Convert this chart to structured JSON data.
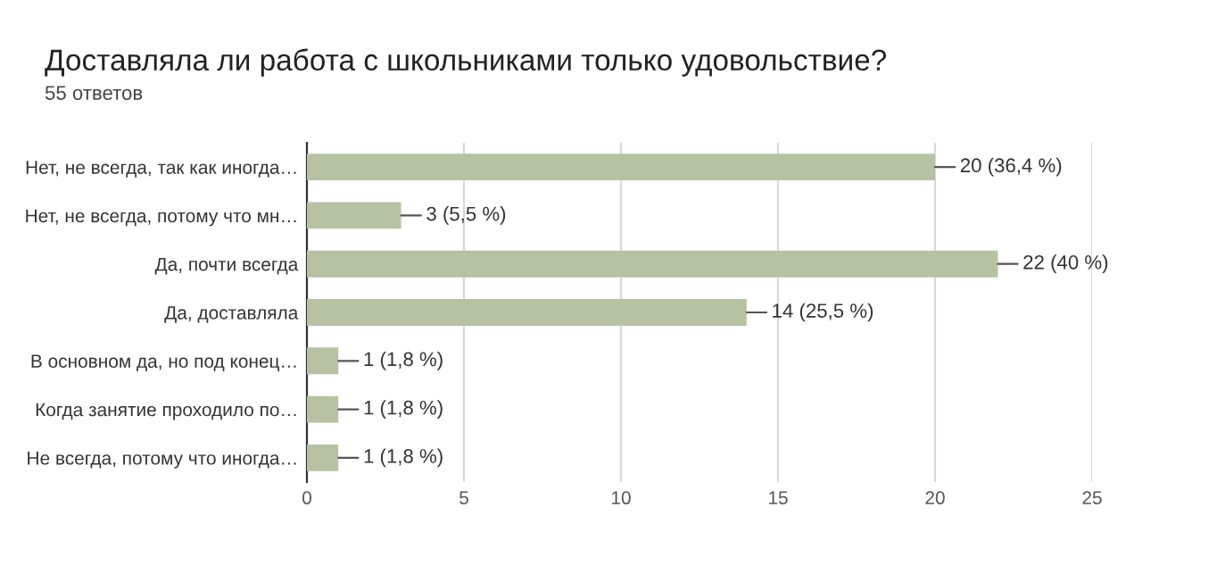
{
  "chart_data": {
    "type": "bar",
    "orientation": "horizontal",
    "title": "Доставляла ли работа с школьниками только удовольствие?",
    "subtitle": "55 ответов",
    "categories": [
      "Нет, не всегда, так как иногда…",
      "Нет, не всегда, потому что мн…",
      "Да, почти всегда",
      "Да, доставляла",
      "В основном да, но под конец…",
      "Когда занятие проходило по…",
      "Не всегда, потому что иногда…"
    ],
    "values": [
      20,
      3,
      22,
      14,
      1,
      1,
      1
    ],
    "value_labels": [
      "20 (36,4 %)",
      "3 (5,5 %)",
      "22 (40 %)",
      "14 (25,5 %)",
      "1 (1,8 %)",
      "1 (1,8 %)",
      "1 (1,8 %)"
    ],
    "color": "#b7c2a2",
    "xlim": [
      0,
      25
    ],
    "xticks": [
      0,
      5,
      10,
      15,
      20,
      25
    ],
    "grid": "x"
  }
}
